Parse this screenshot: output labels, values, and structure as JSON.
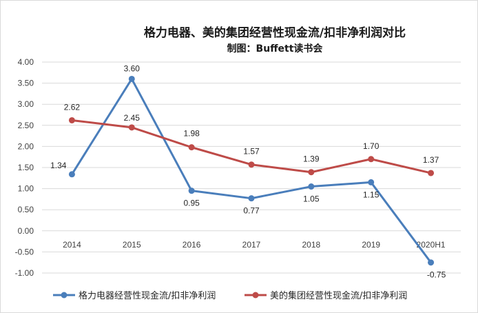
{
  "chart_data": {
    "type": "line",
    "title": "格力电器、美的集团经营性现金流/扣非净利润对比",
    "subtitle": "制图：Buffett读书会",
    "categories": [
      "2014",
      "2015",
      "2016",
      "2017",
      "2018",
      "2019",
      "2020H1"
    ],
    "ylim": [
      -1.0,
      4.0
    ],
    "yticks": [
      "4.00",
      "3.50",
      "3.00",
      "2.50",
      "2.00",
      "1.50",
      "1.00",
      "0.50",
      "0.00",
      "-0.50",
      "-1.00"
    ],
    "grid": true,
    "legend_position": "bottom",
    "series": [
      {
        "name": "格力电器经营性现金流/扣非净利润",
        "color": "#4a7ebb",
        "values": [
          1.34,
          3.6,
          0.95,
          0.77,
          1.05,
          1.15,
          -0.75
        ],
        "labels": [
          "1.34",
          "3.60",
          "0.95",
          "0.77",
          "1.05",
          "1.15",
          "-0.75"
        ]
      },
      {
        "name": "美的集团经营性现金流/扣非净利润",
        "color": "#be4b48",
        "values": [
          2.62,
          2.45,
          1.98,
          1.57,
          1.39,
          1.7,
          1.37
        ],
        "labels": [
          "2.62",
          "2.45",
          "1.98",
          "1.57",
          "1.39",
          "1.70",
          "1.37"
        ]
      }
    ]
  }
}
